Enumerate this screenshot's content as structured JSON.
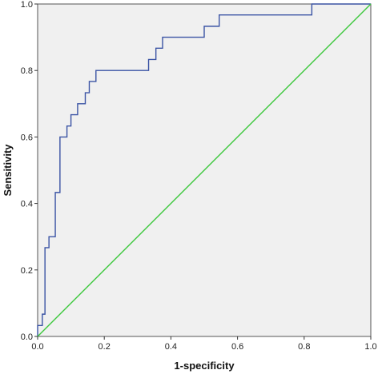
{
  "chart_data": {
    "type": "line",
    "title": "",
    "xlabel": "1-specificity",
    "ylabel": "Sensitivity",
    "xlim": [
      0.0,
      1.0
    ],
    "ylim": [
      0.0,
      1.0
    ],
    "x_ticks": [
      "0.0",
      "0.2",
      "0.4",
      "0.6",
      "0.8",
      "1.0"
    ],
    "y_ticks": [
      "0.0",
      "0.2",
      "0.4",
      "0.6",
      "0.8",
      "1.0"
    ],
    "grid": false,
    "legend": "none",
    "plot_background": "#f0f0f0",
    "series": [
      {
        "style": "step",
        "color": "#3a53a4",
        "points": [
          [
            0.0,
            0.0
          ],
          [
            0.0,
            0.033
          ],
          [
            0.014,
            0.033
          ],
          [
            0.014,
            0.067
          ],
          [
            0.022,
            0.067
          ],
          [
            0.022,
            0.267
          ],
          [
            0.034,
            0.267
          ],
          [
            0.034,
            0.3
          ],
          [
            0.053,
            0.3
          ],
          [
            0.053,
            0.433
          ],
          [
            0.067,
            0.433
          ],
          [
            0.067,
            0.6
          ],
          [
            0.088,
            0.6
          ],
          [
            0.088,
            0.633
          ],
          [
            0.1,
            0.633
          ],
          [
            0.1,
            0.667
          ],
          [
            0.12,
            0.667
          ],
          [
            0.12,
            0.7
          ],
          [
            0.143,
            0.7
          ],
          [
            0.143,
            0.733
          ],
          [
            0.155,
            0.733
          ],
          [
            0.155,
            0.767
          ],
          [
            0.175,
            0.767
          ],
          [
            0.175,
            0.8
          ],
          [
            0.333,
            0.8
          ],
          [
            0.333,
            0.833
          ],
          [
            0.355,
            0.833
          ],
          [
            0.355,
            0.867
          ],
          [
            0.375,
            0.867
          ],
          [
            0.375,
            0.9
          ],
          [
            0.5,
            0.9
          ],
          [
            0.5,
            0.933
          ],
          [
            0.545,
            0.933
          ],
          [
            0.545,
            0.967
          ],
          [
            0.823,
            0.967
          ],
          [
            0.823,
            1.0
          ],
          [
            1.0,
            1.0
          ]
        ]
      },
      {
        "style": "line",
        "color": "#3cc83c",
        "points": [
          [
            0.0,
            0.0
          ],
          [
            1.0,
            1.0
          ]
        ]
      }
    ]
  }
}
